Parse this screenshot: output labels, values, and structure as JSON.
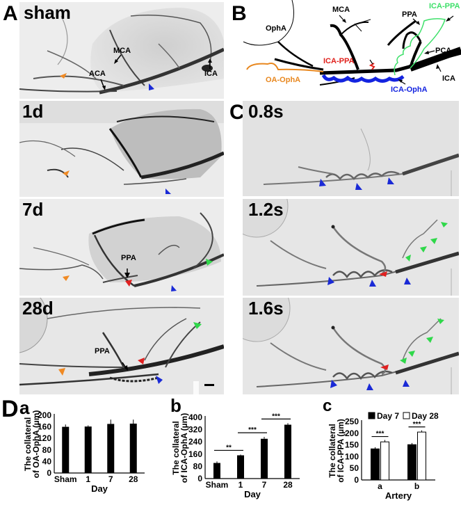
{
  "figure": {
    "panel_letters": {
      "A": "A",
      "B": "B",
      "C": "C",
      "D": "D"
    },
    "panel_A": {
      "rows": [
        {
          "label": "sham",
          "annotations": [
            "MCA",
            "ACA",
            "ICA"
          ]
        },
        {
          "label": "1d",
          "annotations": []
        },
        {
          "label": "7d",
          "annotations": [
            "PPA"
          ]
        },
        {
          "label": "28d",
          "annotations": [
            "PPA"
          ]
        }
      ]
    },
    "panel_B": {
      "labels": {
        "opha": "OphA",
        "mca": "MCA",
        "ppa": "PPA",
        "ica_ppa_green": "ICA-PPA",
        "pca": "PCA",
        "ica_ppa_red": "ICA-PPA",
        "oa_opha": "OA-OphA",
        "ica_opha": "ICA-OphA",
        "ica": "ICA"
      },
      "colors": {
        "oa_opha": "#e8871e",
        "ica_ppa_red": "#e0201b",
        "ica_ppa_green": "#3ee06a",
        "ica_opha": "#1424e0",
        "vessel": "#000000"
      }
    },
    "panel_C": {
      "rows": [
        {
          "label": "0.8s"
        },
        {
          "label": "1.2s"
        },
        {
          "label": "1.6s"
        }
      ]
    },
    "arrowhead_colors": {
      "orange": "#f08a24",
      "blue": "#1a2ad6",
      "red": "#e02020",
      "green": "#2fd84a"
    },
    "panel_D": {
      "sub_letters": {
        "a": "a",
        "b": "b",
        "c": "c"
      }
    }
  },
  "chart_data": [
    {
      "id": "Da",
      "type": "bar",
      "title": "",
      "xlabel": "Day",
      "ylabel": "The collateral of OA-OphA (µm)",
      "ylabel_line1": "The collateral",
      "ylabel_line2": "of OA-OphA (µm)",
      "categories": [
        "Sham",
        "1",
        "7",
        "28"
      ],
      "values": [
        160,
        161,
        170,
        171
      ],
      "errors": [
        8,
        4,
        15,
        14
      ],
      "ylim": [
        0,
        200
      ],
      "yticks": [
        0,
        40,
        80,
        120,
        160,
        200
      ],
      "bar_color": "#000000",
      "significance": []
    },
    {
      "id": "Db",
      "type": "bar",
      "title": "",
      "xlabel": "Day",
      "ylabel": "The collateral of ICA-OphA (µm)",
      "ylabel_line1": "The collateral",
      "ylabel_line2": "of ICA-OphA (µm)",
      "categories": [
        "Sham",
        "1",
        "7",
        "28"
      ],
      "values": [
        102,
        152,
        260,
        352
      ],
      "errors": [
        10,
        5,
        12,
        10
      ],
      "ylim": [
        0,
        400
      ],
      "yticks": [
        0,
        80,
        160,
        240,
        320,
        400
      ],
      "bar_color": "#000000",
      "significance": [
        {
          "from": "Sham",
          "to": "1",
          "label": "**"
        },
        {
          "from": "1",
          "to": "7",
          "label": "***"
        },
        {
          "from": "7",
          "to": "28",
          "label": "***"
        }
      ]
    },
    {
      "id": "Dc",
      "type": "bar",
      "title": "",
      "xlabel": "Artery",
      "ylabel": "The collateral of ICA-PPA (µm)",
      "ylabel_line1": "The collateral",
      "ylabel_line2": "of ICA-PPA (µm)",
      "categories": [
        "a",
        "b"
      ],
      "series": [
        {
          "name": "Day 7",
          "values": [
            133,
            151
          ],
          "errors": [
            7,
            7
          ],
          "fill": "#000000"
        },
        {
          "name": "Day 28",
          "values": [
            163,
            205
          ],
          "errors": [
            8,
            7
          ],
          "fill": "#ffffff"
        }
      ],
      "legend": [
        "Day 7",
        "Day 28"
      ],
      "legend_position": "top",
      "ylim": [
        0,
        250
      ],
      "yticks": [
        0,
        50,
        100,
        150,
        200,
        250
      ],
      "significance": [
        {
          "category": "a",
          "label": "***"
        },
        {
          "category": "b",
          "label": "***"
        }
      ]
    }
  ],
  "scale_bar": {
    "present": true
  }
}
